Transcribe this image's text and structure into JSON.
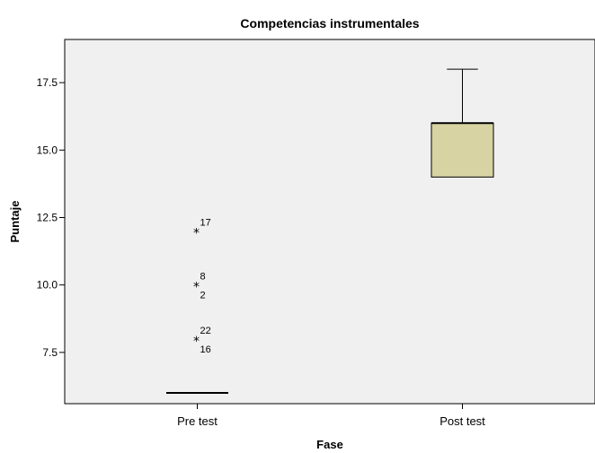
{
  "chart_data": {
    "type": "boxplot",
    "title": "Competencias instrumentales",
    "xlabel": "Fase",
    "ylabel": "Puntaje",
    "ylim": [
      5.6,
      19.1
    ],
    "yticks": [
      7.5,
      10.0,
      12.5,
      15.0,
      17.5
    ],
    "ytick_labels": [
      "7.5",
      "10.0",
      "12.5",
      "15.0",
      "17.5"
    ],
    "grid": false,
    "categories": [
      "Pre test",
      "Post test"
    ],
    "boxes": [
      {
        "category": "Pre test",
        "min": 6,
        "q1": 6,
        "median": 6,
        "q3": 6,
        "max": 6,
        "outliers": [
          {
            "value": 12,
            "labels": [
              "17"
            ]
          },
          {
            "value": 10,
            "labels": [
              "8",
              "2"
            ]
          },
          {
            "value": 8,
            "labels": [
              "22",
              "16"
            ]
          }
        ]
      },
      {
        "category": "Post test",
        "min": 14,
        "q1": 14,
        "median": 16,
        "q3": 16,
        "max": 18,
        "outliers": []
      }
    ],
    "colors": {
      "plot_background": "#f0f0f0",
      "box_fill": "#d8d3a3",
      "stroke": "#000000"
    }
  }
}
